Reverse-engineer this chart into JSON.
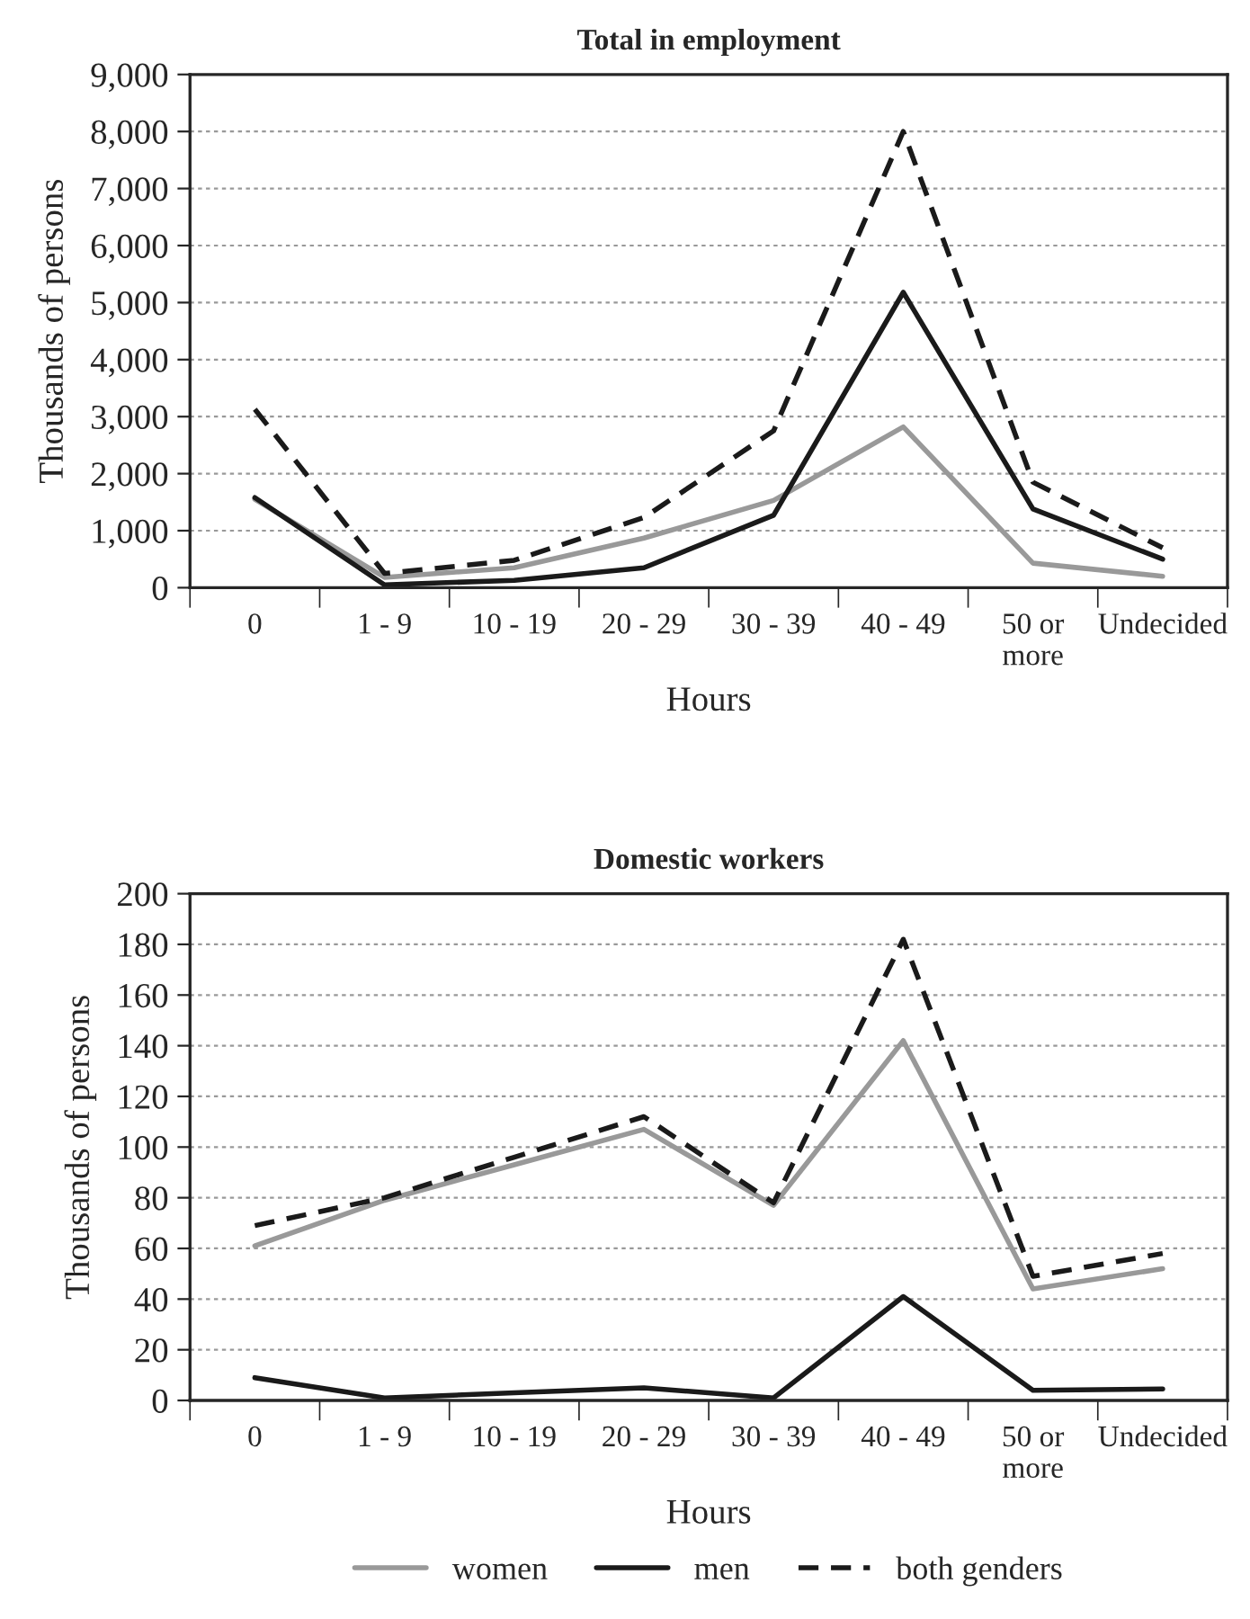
{
  "chart_data": [
    {
      "type": "line",
      "title": "Total in employment",
      "xlabel": "Hours",
      "ylabel": "Thousands of persons",
      "categories": [
        "0",
        "1 - 9",
        "10 - 19",
        "20 - 29",
        "30 - 39",
        "40 - 49",
        "50 or\nmore",
        "Undecided"
      ],
      "series": [
        {
          "color": "#999999",
          "line_style": "solid",
          "values": [
            1550,
            180,
            350,
            870,
            1530,
            2820,
            430,
            200
          ]
        },
        {
          "color": "#1a1a1a",
          "line_style": "solid",
          "values": [
            1580,
            50,
            130,
            350,
            1270,
            5180,
            1380,
            500
          ]
        },
        {
          "color": "#1a1a1a",
          "line_style": "dashed",
          "values": [
            3130,
            250,
            480,
            1230,
            2750,
            8000,
            1850,
            700
          ]
        }
      ],
      "ylim": [
        0,
        9000
      ],
      "yticks": [
        {
          "value": 0,
          "label": "0"
        },
        {
          "value": 1000,
          "label": "1,000"
        },
        {
          "value": 2000,
          "label": "2,000"
        },
        {
          "value": 3000,
          "label": "3,000"
        },
        {
          "value": 4000,
          "label": "4,000"
        },
        {
          "value": 5000,
          "label": "5,000"
        },
        {
          "value": 6000,
          "label": "6,000"
        },
        {
          "value": 7000,
          "label": "7,000"
        },
        {
          "value": 8000,
          "label": "8,000"
        },
        {
          "value": 9000,
          "label": "9,000"
        }
      ],
      "grid": "y"
    },
    {
      "type": "line",
      "title": "Domestic workers",
      "xlabel": "Hours",
      "ylabel": "Thousands of persons",
      "categories": [
        "0",
        "1 - 9",
        "10 - 19",
        "20 - 29",
        "30 - 39",
        "40 - 49",
        "50 or\nmore",
        "Undecided"
      ],
      "series": [
        {
          "name": "women",
          "color": "#999999",
          "line_style": "solid",
          "values": [
            61,
            79,
            93,
            107,
            77,
            142,
            44,
            52
          ]
        },
        {
          "name": "men",
          "color": "#1a1a1a",
          "line_style": "solid",
          "values": [
            9,
            1,
            3,
            5,
            1,
            41,
            4,
            4.5
          ]
        },
        {
          "name": "both genders",
          "color": "#1a1a1a",
          "line_style": "dashed",
          "values": [
            69,
            80,
            96,
            112,
            78,
            182,
            49,
            58
          ]
        }
      ],
      "ylim": [
        0,
        200
      ],
      "yticks": [
        0,
        20,
        40,
        60,
        80,
        100,
        120,
        140,
        160,
        180,
        200
      ],
      "grid": "y",
      "legend": "bottom"
    }
  ]
}
